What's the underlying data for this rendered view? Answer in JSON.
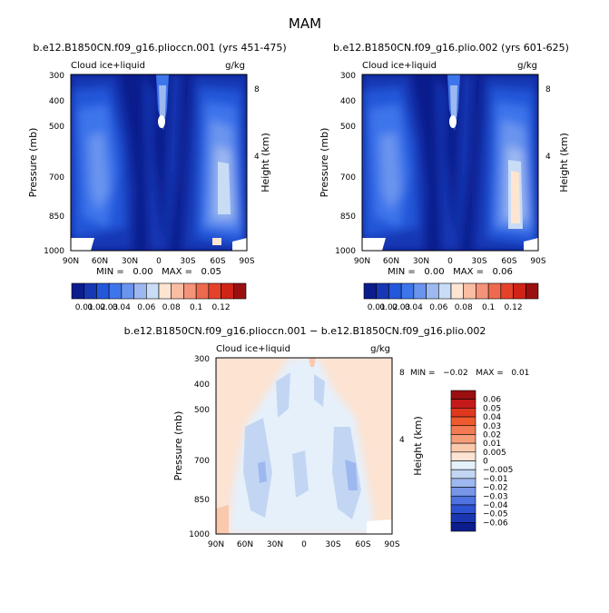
{
  "figure": {
    "title": "MAM"
  },
  "chart_data": [
    {
      "type": "heatmap",
      "title": "b.e12.B1850CN.f09_g16.plioccn.001 (yrs 451-475)",
      "variable": "Cloud ice+liquid",
      "units": "g/kg",
      "xlabel": "",
      "ylabel": "Pressure (mb)",
      "ylabel_right": "Height (km)",
      "x_ticks": [
        "90N",
        "60N",
        "30N",
        "0",
        "30S",
        "60S",
        "90S"
      ],
      "y_ticks": [
        "300",
        "400",
        "500",
        "700",
        "850",
        "1000"
      ],
      "y_ticks_right": [
        "8",
        "4"
      ],
      "ylim": [
        1000,
        300
      ],
      "min_max_text": "MIN =   0.00   MAX =   0.05",
      "min": 0.0,
      "max": 0.05,
      "colorbar_labels": [
        "0.01",
        "0.02",
        "0.03",
        "0.04",
        "0.06",
        "0.08",
        "0.1",
        "0.12"
      ]
    },
    {
      "type": "heatmap",
      "title": "b.e12.B1850CN.f09_g16.plio.002 (yrs 601-625)",
      "variable": "Cloud ice+liquid",
      "units": "g/kg",
      "xlabel": "",
      "ylabel": "Pressure (mb)",
      "ylabel_right": "Height (km)",
      "x_ticks": [
        "90N",
        "60N",
        "30N",
        "0",
        "30S",
        "60S",
        "90S"
      ],
      "y_ticks": [
        "300",
        "400",
        "500",
        "700",
        "850",
        "1000"
      ],
      "y_ticks_right": [
        "8",
        "4"
      ],
      "ylim": [
        1000,
        300
      ],
      "min_max_text": "MIN =   0.00   MAX =   0.06",
      "min": 0.0,
      "max": 0.06,
      "colorbar_labels": [
        "0.01",
        "0.02",
        "0.03",
        "0.04",
        "0.06",
        "0.08",
        "0.1",
        "0.12"
      ]
    },
    {
      "type": "heatmap",
      "title": "b.e12.B1850CN.f09_g16.plioccn.001 − b.e12.B1850CN.f09_g16.plio.002",
      "variable": "Cloud ice+liquid",
      "units": "g/kg",
      "xlabel": "",
      "ylabel": "Pressure (mb)",
      "ylabel_right": "Height (km)",
      "x_ticks": [
        "90N",
        "60N",
        "30N",
        "0",
        "30S",
        "60S",
        "90S"
      ],
      "y_ticks": [
        "300",
        "400",
        "500",
        "700",
        "850",
        "1000"
      ],
      "y_ticks_right": [
        "8",
        "4"
      ],
      "ylim": [
        1000,
        300
      ],
      "min_max_text": "MIN =   −0.02   MAX =   0.01",
      "min": -0.02,
      "max": 0.01,
      "colorbar_labels": [
        "0.06",
        "0.05",
        "0.04",
        "0.03",
        "0.02",
        "0.01",
        "0.005",
        "0",
        "−0.005",
        "−0.01",
        "−0.02",
        "−0.03",
        "−0.04",
        "−0.05",
        "−0.06"
      ]
    }
  ],
  "palettes": {
    "abs": [
      "#0b1c8c",
      "#1737b5",
      "#2457d9",
      "#3d75eb",
      "#6a94ee",
      "#9db8f1",
      "#c9dcf6",
      "#fde5d2",
      "#f9bda3",
      "#f4937a",
      "#ee6a4e",
      "#e5422c",
      "#cf2417",
      "#9a0f0f"
    ],
    "diff": [
      "#9a0f0f",
      "#c41a1a",
      "#e0381f",
      "#ef5a2f",
      "#f37a52",
      "#f69c79",
      "#fac9ad",
      "#fce3d2",
      "#e6f0fb",
      "#c2d6f3",
      "#9db8ef",
      "#7796e8",
      "#4e72e0",
      "#2d52d2",
      "#1a36b0",
      "#0b1c8c"
    ]
  }
}
